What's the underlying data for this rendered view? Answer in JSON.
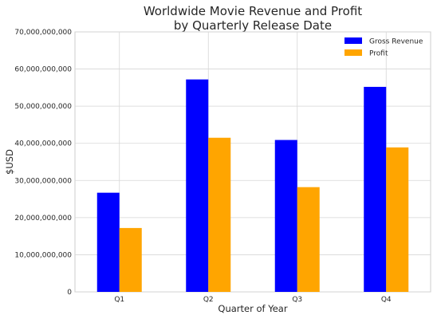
{
  "chart_data": {
    "type": "bar",
    "title_lines": [
      "Worldwide Movie Revenue and Profit",
      "by Quarterly Release Date"
    ],
    "xlabel": "Quarter of Year",
    "ylabel": "$USD",
    "categories": [
      "Q1",
      "Q2",
      "Q3",
      "Q4"
    ],
    "series": [
      {
        "name": "Gross Revenue",
        "color": "#0000ff",
        "values": [
          26700000000,
          57200000000,
          40900000000,
          55200000000
        ]
      },
      {
        "name": "Profit",
        "color": "#ffa500",
        "values": [
          17200000000,
          41500000000,
          28200000000,
          38900000000
        ]
      }
    ],
    "ylim": [
      0,
      70000000000
    ],
    "yticks": [
      0,
      10000000000,
      20000000000,
      30000000000,
      40000000000,
      50000000000,
      60000000000,
      70000000000
    ],
    "ytick_labels": [
      "0",
      "10,000,000,000",
      "20,000,000,000",
      "30,000,000,000",
      "40,000,000,000",
      "50,000,000,000",
      "60,000,000,000",
      "70,000,000,000"
    ],
    "grid": true,
    "legend_position": "top-right"
  }
}
